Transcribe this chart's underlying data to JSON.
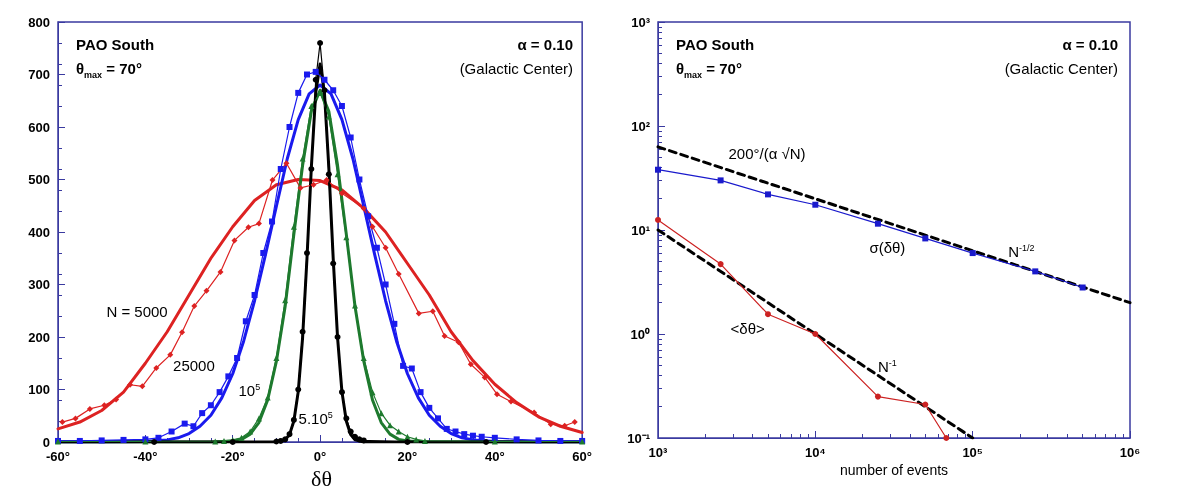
{
  "chart_data": [
    {
      "type": "line",
      "xlabel": "δθ",
      "xlim": [
        -60,
        60
      ],
      "ylim": [
        0,
        800
      ],
      "xticks": [
        {
          "value": -60,
          "label": "-60°"
        },
        {
          "value": -40,
          "label": "-40°"
        },
        {
          "value": -20,
          "label": "-20°"
        },
        {
          "value": 0,
          "label": "0°"
        },
        {
          "value": 20,
          "label": "20°"
        },
        {
          "value": 40,
          "label": "40°"
        },
        {
          "value": 60,
          "label": "60°"
        }
      ],
      "yticks": [
        0,
        100,
        200,
        300,
        400,
        500,
        600,
        700,
        800
      ],
      "annotations": [
        "PAO South",
        "θ$_{max}$ = 70°",
        "α = 0.10",
        "(Galactic Center)",
        "N = 5000",
        "25000",
        "10$^{5}$",
        "5.10$^{5}$"
      ],
      "series": [
        {
          "color": "#dd2222",
          "marker": "none",
          "line_style": "solid",
          "x": [
            -60,
            -55,
            -50,
            -45,
            -40,
            -35,
            -30,
            -25,
            -20,
            -15,
            -10,
            -5,
            0,
            5,
            10,
            15,
            20,
            25,
            30,
            35,
            40,
            45,
            50,
            55,
            60
          ],
          "values": [
            25,
            38,
            60,
            95,
            150,
            210,
            280,
            350,
            410,
            460,
            490,
            500,
            498,
            480,
            445,
            400,
            340,
            280,
            210,
            155,
            110,
            75,
            48,
            30,
            18
          ]
        },
        {
          "color": "#dd2222",
          "marker": "diamond",
          "line_style": "solid",
          "x": [
            -59,
            -56,
            -52.7,
            -49.4,
            -46.7,
            -43.5,
            -40.7,
            -37.5,
            -34.3,
            -31.6,
            -28.8,
            -26,
            -22.8,
            -19.6,
            -16.4,
            -14,
            -10.9,
            -7.7,
            -4.5,
            -1.5,
            1.5,
            5,
            10,
            12,
            15,
            18,
            22.6,
            25.8,
            28.5,
            31.7,
            34.5,
            37.7,
            40.5,
            43.7,
            49,
            52.8,
            56,
            58.3
          ],
          "values": [
            38,
            45,
            63,
            70,
            81,
            109,
            106,
            141,
            166,
            209,
            259,
            288,
            324,
            384,
            409,
            416,
            499,
            531,
            484,
            490,
            499,
            474,
            445,
            410,
            370,
            320,
            245,
            249,
            202,
            190,
            148,
            123,
            91,
            77,
            56,
            34,
            31,
            38
          ]
        },
        {
          "color": "#1a1aee",
          "marker": "none",
          "line_style": "solid",
          "x": [
            -60,
            -50,
            -40,
            -35,
            -32.5,
            -30,
            -27.5,
            -25,
            -22.5,
            -20,
            -17.5,
            -15,
            -12.5,
            -10,
            -7.5,
            -5,
            -2.5,
            0,
            2.5,
            5,
            7.5,
            10,
            12.5,
            15,
            17.5,
            20,
            22.5,
            25,
            27.5,
            30,
            32.5,
            35,
            40,
            50,
            60
          ],
          "values": [
            0,
            0,
            1,
            4,
            8,
            16,
            30,
            51,
            84,
            130,
            192,
            269,
            357,
            449,
            540,
            614,
            663,
            680,
            663,
            614,
            540,
            449,
            357,
            269,
            192,
            130,
            84,
            51,
            30,
            16,
            8,
            4,
            1,
            0,
            0
          ]
        },
        {
          "color": "#1a1aee",
          "marker": "square",
          "line_style": "solid",
          "x": [
            -60,
            -55,
            -50,
            -45,
            -40,
            -37,
            -34,
            -31,
            -29,
            -27,
            -25,
            -23,
            -21,
            -19,
            -17,
            -15,
            -13,
            -11,
            -9,
            -7,
            -5,
            -3,
            -1,
            1,
            3,
            5,
            7,
            9,
            11,
            13,
            15,
            17,
            19,
            21,
            23,
            25,
            27,
            29,
            31,
            33,
            35,
            37,
            40,
            45,
            50,
            55,
            60
          ],
          "values": [
            2,
            2,
            3,
            4,
            5,
            8,
            20,
            35,
            30,
            55,
            70,
            95,
            125,
            160,
            230,
            280,
            360,
            420,
            520,
            600,
            665,
            700,
            705,
            690,
            670,
            640,
            580,
            500,
            430,
            370,
            300,
            225,
            145,
            140,
            95,
            65,
            45,
            25,
            20,
            15,
            12,
            10,
            8,
            5,
            3,
            2,
            2
          ]
        },
        {
          "color": "#1e7a2e",
          "marker": "none",
          "line_style": "solid",
          "x": [
            -60,
            -40,
            -25,
            -20,
            -18,
            -16,
            -14,
            -12,
            -10,
            -8,
            -6,
            -4,
            -2,
            0,
            2,
            4,
            6,
            8,
            10,
            12,
            14,
            16,
            18,
            20,
            25,
            40,
            60
          ],
          "values": [
            0,
            0,
            0,
            2,
            5,
            15,
            37,
            80,
            154,
            258,
            396,
            527,
            630,
            670,
            630,
            527,
            396,
            258,
            154,
            80,
            37,
            15,
            5,
            2,
            0,
            0,
            0
          ]
        },
        {
          "color": "#1e7a2e",
          "marker": "triangle",
          "line_style": "solid",
          "x": [
            -60,
            -40,
            -24,
            -22,
            -20,
            -18,
            -16,
            -14,
            -12,
            -10,
            -8,
            -6,
            -4,
            -2,
            0,
            2,
            4,
            6,
            8,
            10,
            12,
            14,
            16,
            18,
            20,
            22,
            24,
            40,
            60
          ],
          "values": [
            1,
            1,
            1,
            2,
            4,
            8,
            20,
            45,
            85,
            160,
            270,
            410,
            540,
            640,
            665,
            620,
            510,
            390,
            260,
            160,
            95,
            55,
            32,
            20,
            10,
            5,
            2,
            1,
            1
          ]
        },
        {
          "color": "#000000",
          "marker": "none",
          "line_style": "solid",
          "x": [
            -60,
            -20,
            -10,
            -8,
            -7,
            -6,
            -5,
            -4,
            -3,
            -2,
            -1,
            0,
            1,
            2,
            3,
            4,
            5,
            6,
            7,
            8,
            10,
            20,
            60
          ],
          "values": [
            0,
            0,
            0,
            4,
            14,
            40,
            96,
            199,
            350,
            523,
            665,
            720,
            665,
            523,
            350,
            199,
            96,
            40,
            14,
            4,
            0,
            0,
            0
          ]
        },
        {
          "color": "#000000",
          "marker": "circle",
          "line_style": "solid",
          "x": [
            -38,
            -20,
            -10,
            -9,
            -8,
            -7,
            -6,
            -5,
            -4,
            -3,
            -2,
            -1,
            0,
            1,
            2,
            3,
            4,
            5,
            6,
            7,
            8,
            9,
            10,
            20,
            38
          ],
          "values": [
            0,
            0,
            1,
            2,
            5,
            15,
            42,
            100,
            210,
            360,
            520,
            690,
            760,
            670,
            510,
            340,
            200,
            95,
            45,
            20,
            10,
            5,
            3,
            0,
            0
          ]
        }
      ]
    },
    {
      "type": "line",
      "xlabel": "number of events",
      "log": "xy",
      "xlim": [
        1000,
        1000000
      ],
      "ylim": [
        0.1,
        1000
      ],
      "xticks": [
        {
          "value": 1000,
          "label": "10³"
        },
        {
          "value": 10000,
          "label": "10⁴"
        },
        {
          "value": 100000,
          "label": "10⁵"
        },
        {
          "value": 1000000,
          "label": "10⁶"
        }
      ],
      "yticks": [
        {
          "value": 0.1,
          "label": "10⁻¹"
        },
        {
          "value": 1,
          "label": "10⁰"
        },
        {
          "value": 10,
          "label": "10¹"
        },
        {
          "value": 100,
          "label": "10²"
        },
        {
          "value": 1000,
          "label": "10³"
        }
      ],
      "annotations": [
        "PAO South",
        "θ$_{max}$ = 70°",
        "α = 0.10",
        "(Galactic Center)",
        "200°/(α √N)",
        "σ(δθ)",
        "N$^{-1/2}$",
        "<δθ>",
        "N$^{-1}$"
      ],
      "series": [
        {
          "color": "#000000",
          "marker": "none",
          "line_style": "dashed",
          "x": [
            1000,
            1000000
          ],
          "values": [
            63,
            2
          ]
        },
        {
          "color": "#000000",
          "marker": "none",
          "line_style": "dashed",
          "x": [
            1000,
            100000
          ],
          "values": [
            10,
            0.1
          ]
        },
        {
          "color": "#1a1acc",
          "marker": "square",
          "line_style": "solid",
          "x": [
            1000,
            2500,
            5000,
            10000,
            25000,
            50000,
            100000,
            250000,
            500000
          ],
          "values": [
            38,
            30,
            22,
            17.5,
            11.5,
            8.3,
            6.0,
            4.0,
            2.8
          ]
        },
        {
          "color": "#cc2222",
          "marker": "circle",
          "line_style": "solid",
          "x": [
            1000,
            2500,
            5000,
            10000,
            25000,
            50000,
            68000
          ],
          "values": [
            12.5,
            4.7,
            1.55,
            1.0,
            0.25,
            0.21,
            0.1
          ]
        }
      ]
    }
  ]
}
